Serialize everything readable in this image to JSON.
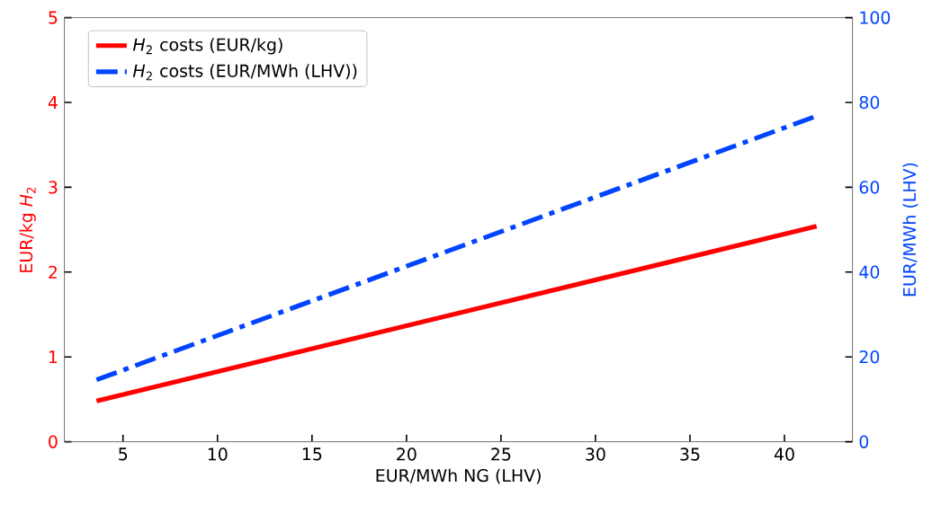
{
  "chart_data": {
    "type": "line",
    "xlabel": "EUR/MWh NG (LHV)",
    "ylabel": "EUR/kg *H*$_{2}$",
    "y2label": "EUR/MWh (LHV)",
    "xlim": [
      1.9,
      43.6
    ],
    "xticks": [
      5,
      10,
      15,
      20,
      25,
      30,
      35,
      40
    ],
    "ylim": [
      0,
      5
    ],
    "yticks": [
      0,
      1,
      2,
      3,
      4,
      5
    ],
    "y2lim": [
      0,
      100
    ],
    "y2ticks": [
      0,
      20,
      40,
      60,
      80,
      100
    ],
    "legend": "top left",
    "x": [
      3.6,
      41.7
    ],
    "series": [
      {
        "name": "*H*$_{2}$ costs (EUR/kg)",
        "color": "#ff0000",
        "line_style": "solid",
        "values": [
          0.48,
          2.54
        ]
      },
      {
        "name": "*H*$_{2}$ costs (EUR/MWh (LHV))",
        "color": "#0044ff",
        "line_style": "dashdot",
        "axis": "y2",
        "values": [
          14.6,
          76.8
        ]
      }
    ]
  }
}
